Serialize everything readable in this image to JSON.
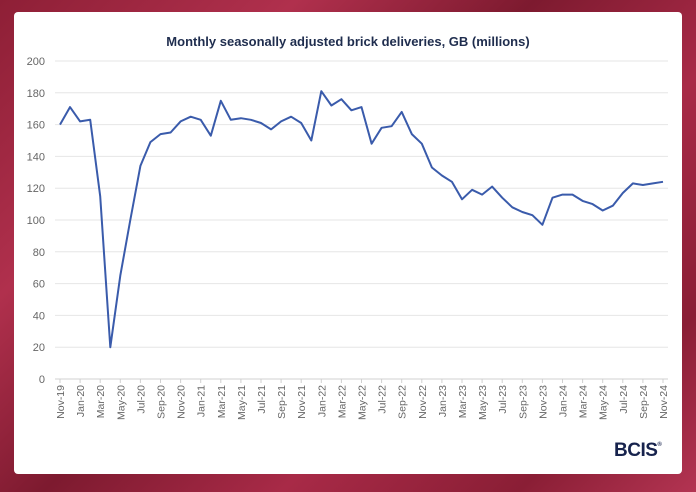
{
  "chart_data": {
    "type": "line",
    "title": "Monthly seasonally adjusted brick deliveries, GB (millions)",
    "xlabel": "",
    "ylabel": "",
    "ylim": [
      0,
      200
    ],
    "yticks": [
      0,
      20,
      40,
      60,
      80,
      100,
      120,
      140,
      160,
      180,
      200
    ],
    "grid": true,
    "x": [
      "Nov-19",
      "Dec-19",
      "Jan-20",
      "Feb-20",
      "Mar-20",
      "Apr-20",
      "May-20",
      "Jun-20",
      "Jul-20",
      "Aug-20",
      "Sep-20",
      "Oct-20",
      "Nov-20",
      "Dec-20",
      "Jan-21",
      "Feb-21",
      "Mar-21",
      "Apr-21",
      "May-21",
      "Jun-21",
      "Jul-21",
      "Aug-21",
      "Sep-21",
      "Oct-21",
      "Nov-21",
      "Dec-21",
      "Jan-22",
      "Feb-22",
      "Mar-22",
      "Apr-22",
      "May-22",
      "Jun-22",
      "Jul-22",
      "Aug-22",
      "Sep-22",
      "Oct-22",
      "Nov-22",
      "Dec-22",
      "Jan-23",
      "Feb-23",
      "Mar-23",
      "Apr-23",
      "May-23",
      "Jun-23",
      "Jul-23",
      "Aug-23",
      "Sep-23",
      "Oct-23",
      "Nov-23",
      "Dec-23",
      "Jan-24",
      "Feb-24",
      "Mar-24",
      "Apr-24",
      "May-24",
      "Jun-24",
      "Jul-24",
      "Aug-24",
      "Sep-24",
      "Oct-24",
      "Nov-24"
    ],
    "series": [
      {
        "color": "#3a5bab",
        "values": [
          160,
          171,
          162,
          163,
          115,
          20,
          65,
          100,
          134,
          149,
          154,
          155,
          162,
          165,
          163,
          153,
          175,
          163,
          164,
          163,
          161,
          157,
          162,
          165,
          161,
          150,
          181,
          172,
          176,
          169,
          171,
          148,
          158,
          159,
          168,
          154,
          148,
          133,
          128,
          124,
          113,
          119,
          116,
          121,
          114,
          108,
          105,
          103,
          97,
          114,
          116,
          116,
          112,
          110,
          106,
          109,
          117,
          123,
          122,
          123,
          124
        ]
      }
    ]
  },
  "logo": "BCIS"
}
